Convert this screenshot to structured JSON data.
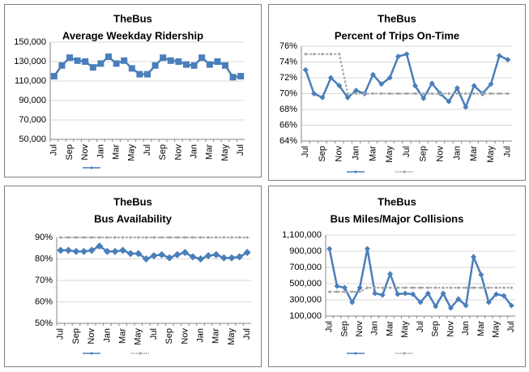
{
  "chart_data": [
    {
      "type": "line",
      "title": "TheBus",
      "subtitle": "Average Weekday Ridership",
      "categories": [
        "Jul",
        null,
        "Sep",
        null,
        "Nov",
        null,
        "Jan",
        null,
        "Mar",
        null,
        "May",
        null,
        "Jul",
        null,
        "Sep",
        null,
        "Nov",
        null,
        "Jan",
        null,
        "Mar",
        null,
        "May",
        null,
        "Jul"
      ],
      "series": [
        {
          "color": "#4a7ebb",
          "marker": "square",
          "values": [
            115000,
            126000,
            134000,
            131000,
            130000,
            124000,
            128000,
            135000,
            128000,
            131000,
            123000,
            117000,
            117000,
            126000,
            134000,
            131000,
            130000,
            127000,
            126000,
            134000,
            127000,
            130000,
            126000,
            114000,
            115000
          ]
        }
      ],
      "ylim": [
        50000,
        150000
      ],
      "yticks": [
        {
          "value": 50000,
          "label": "50,000"
        },
        {
          "value": 70000,
          "label": "70,000"
        },
        {
          "value": 90000,
          "label": "90,000"
        },
        {
          "value": 110000,
          "label": "110,000"
        },
        {
          "value": 130000,
          "label": "130,000"
        },
        {
          "value": 150000,
          "label": "150,000"
        }
      ],
      "grid": true
    },
    {
      "type": "line",
      "title": "TheBus",
      "subtitle": "Percent of Trips On-Time",
      "categories": [
        "Jul",
        null,
        "Sep",
        null,
        "Nov",
        null,
        "Jan",
        null,
        "Mar",
        null,
        "May",
        null,
        "Jul",
        null,
        "Sep",
        null,
        "Nov",
        null,
        "Jan",
        null,
        "Mar",
        null,
        "May",
        null,
        "Jul"
      ],
      "series": [
        {
          "color": "#4a7ebb",
          "marker": "diamond",
          "values": [
            73,
            70,
            69.5,
            72,
            71,
            69.5,
            70.4,
            70,
            72.4,
            71.2,
            72,
            74.7,
            75,
            71,
            69.4,
            71.3,
            70,
            69,
            70.7,
            68.3,
            71,
            70,
            71.2,
            74.8,
            74.3
          ]
        },
        {
          "color": "#a6a6a6",
          "marker": "dot",
          "dashed": true,
          "values": [
            75,
            75,
            75,
            75,
            75,
            70,
            70,
            70,
            70,
            70,
            70,
            70,
            70,
            70,
            70,
            70,
            70,
            70,
            70,
            70,
            70,
            70,
            70,
            70,
            70
          ]
        }
      ],
      "ylim": [
        64,
        76
      ],
      "yticks": [
        {
          "value": 64,
          "label": "64%"
        },
        {
          "value": 66,
          "label": "66%"
        },
        {
          "value": 68,
          "label": "68%"
        },
        {
          "value": 70,
          "label": "70%"
        },
        {
          "value": 72,
          "label": "72%"
        },
        {
          "value": 74,
          "label": "74%"
        },
        {
          "value": 76,
          "label": "76%"
        }
      ],
      "grid": true
    },
    {
      "type": "line",
      "title": "TheBus",
      "subtitle": "Bus Availability",
      "categories": [
        "Jul",
        null,
        "Sep",
        null,
        "Nov",
        null,
        "Jan",
        null,
        "Mar",
        null,
        "May",
        null,
        "Jul",
        null,
        "Sep",
        null,
        "Nov",
        null,
        "Jan",
        null,
        "Mar",
        null,
        "May",
        null,
        "Jul"
      ],
      "series": [
        {
          "color": "#4a7ebb",
          "marker": "diamond",
          "values": [
            84,
            84,
            83.5,
            83.5,
            84,
            86,
            83.5,
            83.5,
            84,
            82.5,
            82.5,
            80,
            81.5,
            82,
            80.5,
            82,
            83,
            81,
            80,
            81.5,
            82,
            80.5,
            80.5,
            81,
            83
          ]
        },
        {
          "color": "#a6a6a6",
          "marker": "dot",
          "dashed": true,
          "values": [
            90,
            90,
            90,
            90,
            90,
            90,
            90,
            90,
            90,
            90,
            90,
            90,
            90,
            90,
            90,
            90,
            90,
            90,
            90,
            90,
            90,
            90,
            90,
            90,
            90
          ]
        }
      ],
      "ylim": [
        50,
        90
      ],
      "yticks": [
        {
          "value": 50,
          "label": "50%"
        },
        {
          "value": 60,
          "label": "60%"
        },
        {
          "value": 70,
          "label": "70%"
        },
        {
          "value": 80,
          "label": "80%"
        },
        {
          "value": 90,
          "label": "90%"
        }
      ],
      "grid": true
    },
    {
      "type": "line",
      "title": "TheBus",
      "subtitle": "Bus Miles/Major Collisions",
      "categories": [
        "Jul",
        null,
        "Sep",
        null,
        "Nov",
        null,
        "Jan",
        null,
        "Mar",
        null,
        "May",
        null,
        "Jul",
        null,
        "Sep",
        null,
        "Nov",
        null,
        "Jan",
        null,
        "Mar",
        null,
        "May",
        null,
        "Jul"
      ],
      "series": [
        {
          "color": "#4a7ebb",
          "marker": "diamond",
          "values": [
            930000,
            470000,
            450000,
            270000,
            450000,
            930000,
            380000,
            360000,
            620000,
            370000,
            380000,
            370000,
            270000,
            380000,
            220000,
            380000,
            200000,
            310000,
            230000,
            830000,
            610000,
            270000,
            370000,
            350000,
            230000
          ]
        },
        {
          "color": "#a6a6a6",
          "marker": "dot",
          "dashed": true,
          "values": [
            400000,
            400000,
            400000,
            400000,
            400000,
            450000,
            450000,
            450000,
            450000,
            450000,
            450000,
            450000,
            450000,
            450000,
            450000,
            450000,
            450000,
            450000,
            450000,
            450000,
            450000,
            450000,
            450000,
            450000,
            450000
          ]
        }
      ],
      "ylim": [
        100000,
        1100000
      ],
      "yticks": [
        {
          "value": 100000,
          "label": "100,000"
        },
        {
          "value": 300000,
          "label": "300,000"
        },
        {
          "value": 500000,
          "label": "500,000"
        },
        {
          "value": 700000,
          "label": "700,000"
        },
        {
          "value": 900000,
          "label": "900,000"
        },
        {
          "value": 1100000,
          "label": "1,100,000"
        }
      ],
      "grid": true
    }
  ]
}
